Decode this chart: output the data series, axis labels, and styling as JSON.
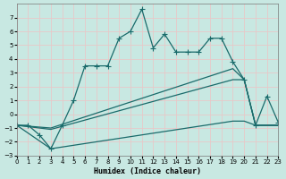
{
  "xlabel": "Humidex (Indice chaleur)",
  "bg_color": "#c8e8e2",
  "grid_color": "#d8ebe6",
  "line_color": "#1a6b6b",
  "xlim": [
    0,
    23
  ],
  "ylim": [
    -3,
    8
  ],
  "yticks": [
    -3,
    -2,
    -1,
    0,
    1,
    2,
    3,
    4,
    5,
    6,
    7
  ],
  "xticks": [
    0,
    1,
    2,
    3,
    4,
    5,
    6,
    7,
    8,
    9,
    10,
    11,
    12,
    13,
    14,
    15,
    16,
    17,
    18,
    19,
    20,
    21,
    22,
    23
  ],
  "line1_x": [
    0,
    1,
    2,
    3,
    4,
    5,
    6,
    7,
    8,
    9,
    10,
    11,
    12,
    13,
    14,
    15,
    16,
    17,
    18,
    19,
    20,
    21,
    22,
    23
  ],
  "line1_y": [
    -0.8,
    -0.8,
    -1.5,
    -2.5,
    -0.8,
    1.0,
    3.5,
    3.5,
    3.5,
    5.5,
    6.0,
    7.6,
    4.8,
    5.8,
    4.5,
    4.5,
    4.5,
    5.5,
    5.5,
    3.8,
    2.5,
    -0.8,
    1.3,
    -0.6
  ],
  "line2_x": [
    0,
    3,
    19,
    20,
    21,
    22,
    23
  ],
  "line2_y": [
    -0.8,
    -1.0,
    3.3,
    2.5,
    -0.8,
    -0.8,
    -0.8
  ],
  "line3_x": [
    0,
    3,
    19,
    20,
    21,
    22,
    23
  ],
  "line3_y": [
    -0.8,
    -1.1,
    2.5,
    2.5,
    -0.8,
    -0.8,
    -0.8
  ],
  "line4_x": [
    0,
    3,
    19,
    20,
    21,
    22,
    23
  ],
  "line4_y": [
    -0.8,
    -2.5,
    -0.5,
    -0.5,
    -0.8,
    -0.8,
    -0.8
  ]
}
